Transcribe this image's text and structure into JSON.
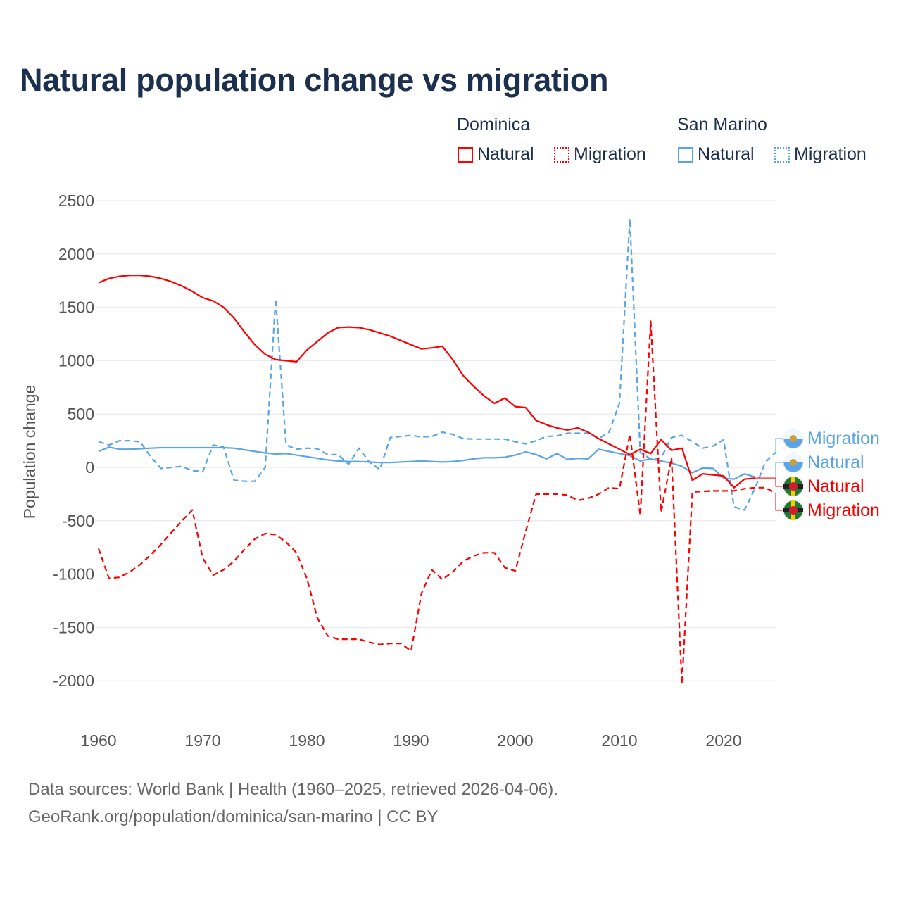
{
  "title": "Natural population change vs migration",
  "legend": {
    "groups": [
      {
        "name": "Dominica",
        "items": [
          "Natural",
          "Migration"
        ]
      },
      {
        "name": "San Marino",
        "items": [
          "Natural",
          "Migration"
        ]
      }
    ]
  },
  "footer": {
    "line1": "Data sources: World Bank | Health (1960–2025, retrieved 2026-04-06).",
    "line2": "GeoRank.org/population/dominica/san-marino | CC BY"
  },
  "colors": {
    "dominica": "#ff0000",
    "san_marino": "#5aa5e8"
  },
  "chart_data": {
    "type": "line",
    "title": "Natural population change vs migration",
    "xlabel": "",
    "ylabel": "Population change",
    "xlim": [
      1960,
      2025
    ],
    "ylim": [
      -2400,
      2600
    ],
    "x_ticks": [
      1960,
      1970,
      1980,
      1990,
      2000,
      2010,
      2020
    ],
    "y_ticks": [
      2500,
      2000,
      1500,
      1000,
      500,
      0,
      -500,
      -1000,
      -1500,
      -2000
    ],
    "grid": true,
    "legend_position": "top-right",
    "end_labels": [
      "Migration",
      "Natural",
      "Natural",
      "Migration"
    ],
    "series": [
      {
        "name": "Dominica Natural",
        "country": "Dominica",
        "kind": "Natural",
        "color": "#ff0000",
        "dash": false,
        "start": 1960,
        "values": [
          1730,
          1770,
          1790,
          1800,
          1800,
          1790,
          1770,
          1740,
          1700,
          1650,
          1590,
          1560,
          1500,
          1400,
          1270,
          1150,
          1060,
          1010,
          1000,
          990,
          1100,
          1180,
          1260,
          1310,
          1315,
          1310,
          1290,
          1260,
          1230,
          1190,
          1150,
          1110,
          1120,
          1135,
          1010,
          860,
          760,
          670,
          600,
          650,
          570,
          560,
          440,
          400,
          370,
          350,
          370,
          330,
          270,
          220,
          170,
          120,
          170,
          130,
          260,
          160,
          180,
          -120,
          -60,
          -70,
          -80,
          -190,
          -110,
          -100
        ]
      },
      {
        "name": "Dominica Migration",
        "country": "Dominica",
        "kind": "Migration",
        "color": "#ff0000",
        "dash": true,
        "start": 1960,
        "values": [
          -760,
          -1040,
          -1030,
          -980,
          -910,
          -820,
          -720,
          -610,
          -500,
          -400,
          -850,
          -1010,
          -960,
          -880,
          -770,
          -670,
          -620,
          -630,
          -700,
          -800,
          -1040,
          -1410,
          -1580,
          -1610,
          -1610,
          -1610,
          -1640,
          -1660,
          -1650,
          -1650,
          -1720,
          -1180,
          -960,
          -1050,
          -980,
          -880,
          -830,
          -800,
          -800,
          -940,
          -970,
          -600,
          -250,
          -250,
          -250,
          -260,
          -310,
          -290,
          -250,
          -190,
          -200,
          310,
          -450,
          1370,
          -420,
          90,
          -2030,
          -230,
          -225,
          -220,
          -220,
          -220,
          -200,
          -190,
          -190,
          -240
        ]
      },
      {
        "name": "San Marino Natural",
        "country": "San Marino",
        "kind": "Natural",
        "color": "#5aa5e8",
        "dash": false,
        "start": 1960,
        "values": [
          150,
          190,
          170,
          170,
          175,
          180,
          185,
          185,
          185,
          185,
          185,
          185,
          185,
          180,
          165,
          150,
          135,
          125,
          130,
          115,
          100,
          85,
          70,
          60,
          55,
          55,
          50,
          45,
          45,
          50,
          55,
          60,
          55,
          50,
          55,
          65,
          80,
          90,
          90,
          95,
          115,
          145,
          120,
          80,
          130,
          75,
          85,
          80,
          170,
          150,
          130,
          110,
          60,
          80,
          60,
          40,
          10,
          -50,
          -5,
          -10,
          -100,
          -110,
          -60,
          -90
        ]
      },
      {
        "name": "San Marino Migration",
        "country": "San Marino",
        "kind": "Migration",
        "color": "#5aa5e8",
        "dash": true,
        "start": 1960,
        "values": [
          240,
          210,
          250,
          250,
          240,
          100,
          -10,
          0,
          10,
          -30,
          -40,
          210,
          190,
          -120,
          -130,
          -130,
          0,
          1580,
          210,
          170,
          180,
          175,
          120,
          120,
          30,
          180,
          50,
          -20,
          280,
          290,
          300,
          285,
          290,
          330,
          310,
          270,
          265,
          265,
          265,
          265,
          240,
          220,
          250,
          290,
          295,
          320,
          320,
          320,
          270,
          330,
          600,
          2330,
          140,
          80,
          90,
          280,
          300,
          240,
          180,
          200,
          260,
          -370,
          -400,
          -200,
          50,
          140
        ]
      }
    ]
  }
}
